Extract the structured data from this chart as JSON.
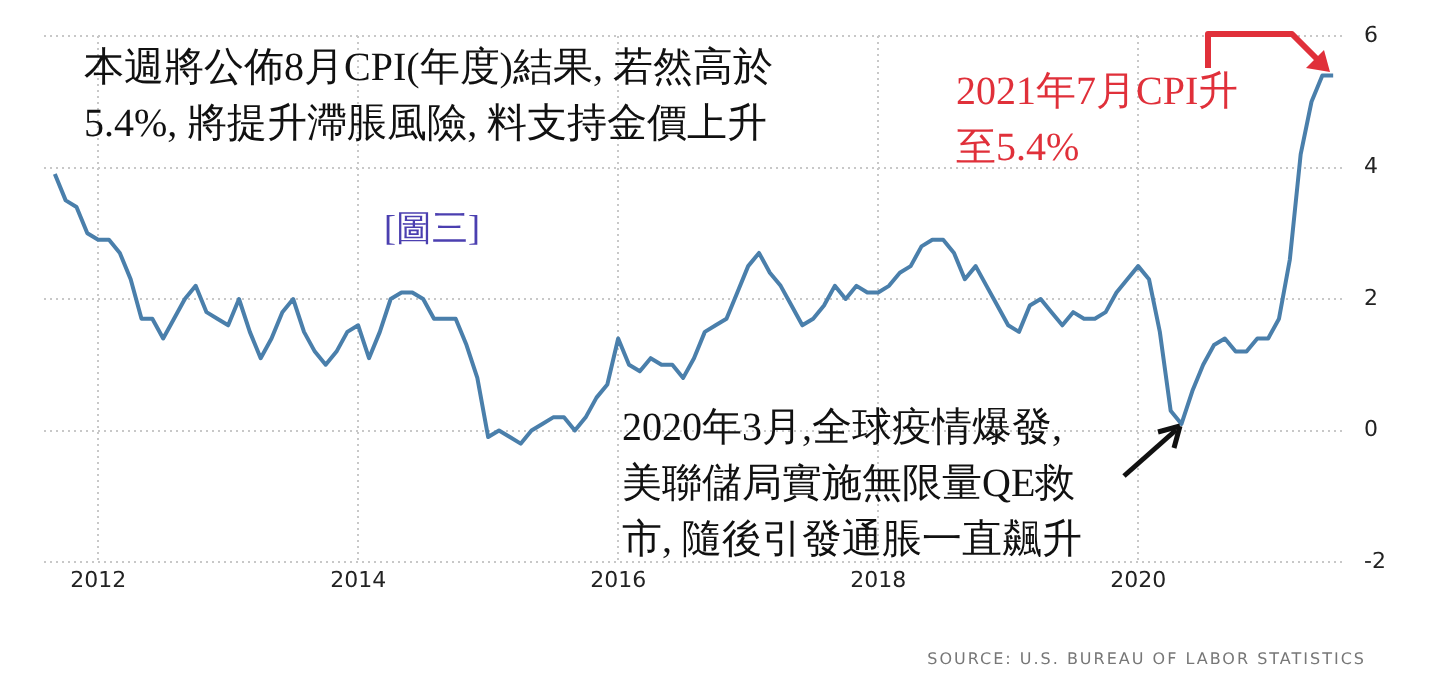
{
  "chart_data": {
    "type": "line",
    "title": "本週將公佈8月CPI(年度)結果, 若然高於\n5.4%, 將提升滯脹風險, 料支持金價上升",
    "x": [
      "2011-09",
      "2011-10",
      "2011-11",
      "2011-12",
      "2012-01",
      "2012-02",
      "2012-03",
      "2012-04",
      "2012-05",
      "2012-06",
      "2012-07",
      "2012-08",
      "2012-09",
      "2012-10",
      "2012-11",
      "2012-12",
      "2013-01",
      "2013-02",
      "2013-03",
      "2013-04",
      "2013-05",
      "2013-06",
      "2013-07",
      "2013-08",
      "2013-09",
      "2013-10",
      "2013-11",
      "2013-12",
      "2014-01",
      "2014-02",
      "2014-03",
      "2014-04",
      "2014-05",
      "2014-06",
      "2014-07",
      "2014-08",
      "2014-09",
      "2014-10",
      "2014-11",
      "2014-12",
      "2015-01",
      "2015-02",
      "2015-03",
      "2015-04",
      "2015-05",
      "2015-06",
      "2015-07",
      "2015-08",
      "2015-09",
      "2015-10",
      "2015-11",
      "2015-12",
      "2016-01",
      "2016-02",
      "2016-03",
      "2016-04",
      "2016-05",
      "2016-06",
      "2016-07",
      "2016-08",
      "2016-09",
      "2016-10",
      "2016-11",
      "2016-12",
      "2017-01",
      "2017-02",
      "2017-03",
      "2017-04",
      "2017-05",
      "2017-06",
      "2017-07",
      "2017-08",
      "2017-09",
      "2017-10",
      "2017-11",
      "2017-12",
      "2018-01",
      "2018-02",
      "2018-03",
      "2018-04",
      "2018-05",
      "2018-06",
      "2018-07",
      "2018-08",
      "2018-09",
      "2018-10",
      "2018-11",
      "2018-12",
      "2019-01",
      "2019-02",
      "2019-03",
      "2019-04",
      "2019-05",
      "2019-06",
      "2019-07",
      "2019-08",
      "2019-09",
      "2019-10",
      "2019-11",
      "2019-12",
      "2020-01",
      "2020-02",
      "2020-03",
      "2020-04",
      "2020-05",
      "2020-06",
      "2020-07",
      "2020-08",
      "2020-09",
      "2020-10",
      "2020-11",
      "2020-12",
      "2021-01",
      "2021-02",
      "2021-03",
      "2021-04",
      "2021-05",
      "2021-06",
      "2021-07"
    ],
    "values": [
      3.9,
      3.5,
      3.4,
      3.0,
      2.9,
      2.9,
      2.7,
      2.3,
      1.7,
      1.7,
      1.4,
      1.7,
      2.0,
      2.2,
      1.8,
      1.7,
      1.6,
      2.0,
      1.5,
      1.1,
      1.4,
      1.8,
      2.0,
      1.5,
      1.2,
      1.0,
      1.2,
      1.5,
      1.6,
      1.1,
      1.5,
      2.0,
      2.1,
      2.1,
      2.0,
      1.7,
      1.7,
      1.7,
      1.3,
      0.8,
      -0.1,
      0.0,
      -0.1,
      -0.2,
      0.0,
      0.1,
      0.2,
      0.2,
      0.0,
      0.2,
      0.5,
      0.7,
      1.4,
      1.0,
      0.9,
      1.1,
      1.0,
      1.0,
      0.8,
      1.1,
      1.5,
      1.6,
      1.7,
      2.1,
      2.5,
      2.7,
      2.4,
      2.2,
      1.9,
      1.6,
      1.7,
      1.9,
      2.2,
      2.0,
      2.2,
      2.1,
      2.1,
      2.2,
      2.4,
      2.5,
      2.8,
      2.9,
      2.9,
      2.7,
      2.3,
      2.5,
      2.2,
      1.9,
      1.6,
      1.5,
      1.9,
      2.0,
      1.8,
      1.6,
      1.8,
      1.7,
      1.7,
      1.8,
      2.1,
      2.3,
      2.5,
      2.3,
      1.5,
      0.3,
      0.1,
      0.6,
      1.0,
      1.3,
      1.4,
      1.2,
      1.2,
      1.4,
      1.4,
      1.7,
      2.6,
      4.2,
      5.0,
      5.4,
      5.4
    ],
    "color": "#4a7fab",
    "xlim": [
      "2011-08",
      "2021-08"
    ],
    "xticks": [
      "2012",
      "2014",
      "2016",
      "2018",
      "2020"
    ],
    "ylim": [
      -2,
      6
    ],
    "yticks": [
      -2,
      0,
      2,
      4,
      6
    ],
    "grid": true,
    "annotations": [
      "[圖三]",
      {
        "text": "2021年7月CPI升至5.4%",
        "x": "2021-07",
        "y": 5.4
      },
      {
        "text": "2020年3月,全球疫情爆發,美聯儲局實施無限量QE救市, 隨後引發通脹一直飆升",
        "x": "2020-05",
        "y": 0.1
      },
      "SOURCE: U.S. BUREAU OF LABOR STATISTICS"
    ]
  }
}
